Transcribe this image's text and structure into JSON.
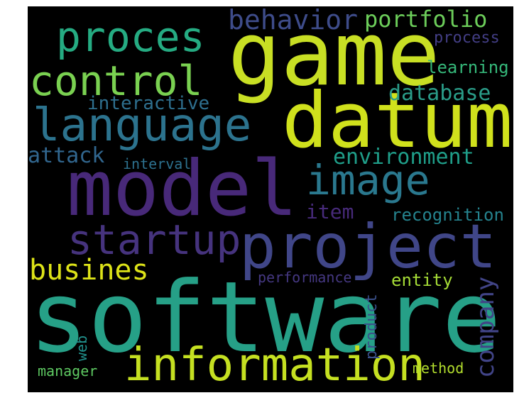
{
  "words": {
    "software": {
      "text": "software",
      "color": "#26a087"
    },
    "game": {
      "text": "game",
      "color": "#c8df24"
    },
    "datum": {
      "text": "datum",
      "color": "#d0e11c"
    },
    "model": {
      "text": "model",
      "color": "#482979"
    },
    "project": {
      "text": "project",
      "color": "#404688"
    },
    "information": {
      "text": "information",
      "color": "#c5e021"
    },
    "language": {
      "text": "language",
      "color": "#2c738e"
    },
    "proces": {
      "text": "proces",
      "color": "#25ab82"
    },
    "control": {
      "text": "control",
      "color": "#7ad151"
    },
    "image": {
      "text": "image",
      "color": "#2a788e"
    },
    "startup": {
      "text": "startup",
      "color": "#46337e"
    },
    "busines": {
      "text": "busines",
      "color": "#dde318"
    },
    "behavior": {
      "text": "behavior",
      "color": "#3e4c8a"
    },
    "portfolio": {
      "text": "portfolio",
      "color": "#6ccd5a"
    },
    "environment": {
      "text": "environment",
      "color": "#1f9e89"
    },
    "database": {
      "text": "database",
      "color": "#2a9c88"
    },
    "attack": {
      "text": "attack",
      "color": "#31668e"
    },
    "interactive": {
      "text": "interactive",
      "color": "#2e6f8e"
    },
    "item": {
      "text": "item",
      "color": "#472a7a"
    },
    "recognition": {
      "text": "recognition",
      "color": "#25838e"
    },
    "entity": {
      "text": "entity",
      "color": "#a5db36"
    },
    "learning": {
      "text": "learning",
      "color": "#35b779"
    },
    "process": {
      "text": "process",
      "color": "#433e85"
    },
    "performance": {
      "text": "performance",
      "color": "#453882"
    },
    "interval": {
      "text": "interval",
      "color": "#2d718e"
    },
    "method": {
      "text": "method",
      "color": "#b2dd2d"
    },
    "manager": {
      "text": "manager",
      "color": "#5ec962"
    },
    "company": {
      "text": "company",
      "color": "#414487"
    },
    "product": {
      "text": "product",
      "color": "#3b518b"
    },
    "web": {
      "text": "web",
      "color": "#21918c"
    }
  }
}
